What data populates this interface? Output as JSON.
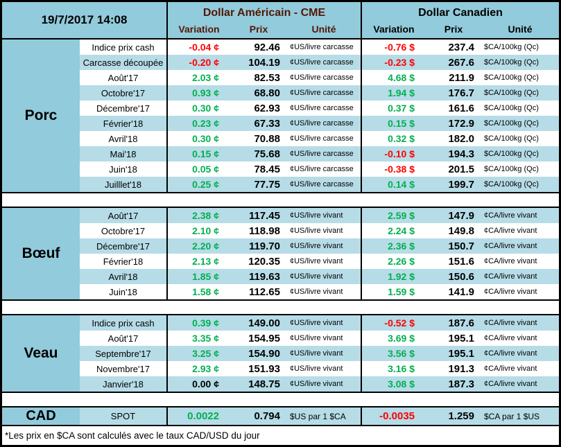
{
  "header": {
    "datetime": "19/7/2017 14:08",
    "us_title": "Dollar Américain - CME",
    "ca_title": "Dollar Canadien",
    "columns": {
      "variation": "Variation",
      "prix": "Prix",
      "unite": "Unité"
    }
  },
  "colors": {
    "accent_blue": "#92cbdb",
    "row_blue": "#b6dce7",
    "positive_green": "#00b050",
    "negative_red": "#ff0000",
    "us_header_text": "#521808"
  },
  "sections": [
    {
      "name": "Porc",
      "rows": [
        {
          "label": "Indice prix cash",
          "us_variation": "-0.04 ¢",
          "us_prix": "92.46",
          "us_unite": "¢US/livre carcasse",
          "ca_variation": "-0.76 $",
          "ca_prix": "237.4",
          "ca_unite": "$CA/100kg (Qc)"
        },
        {
          "label": "Carcasse découpée",
          "us_variation": "-0.20 ¢",
          "us_prix": "104.19",
          "us_unite": "¢US/livre carcasse",
          "ca_variation": "-0.23 $",
          "ca_prix": "267.6",
          "ca_unite": "$CA/100kg (Qc)"
        },
        {
          "label": "Août'17",
          "us_variation": "2.03 ¢",
          "us_prix": "82.53",
          "us_unite": "¢US/livre carcasse",
          "ca_variation": "4.68 $",
          "ca_prix": "211.9",
          "ca_unite": "$CA/100kg (Qc)"
        },
        {
          "label": "Octobre'17",
          "us_variation": "0.93 ¢",
          "us_prix": "68.80",
          "us_unite": "¢US/livre carcasse",
          "ca_variation": "1.94 $",
          "ca_prix": "176.7",
          "ca_unite": "$CA/100kg (Qc)"
        },
        {
          "label": "Décembre'17",
          "us_variation": "0.30 ¢",
          "us_prix": "62.93",
          "us_unite": "¢US/livre carcasse",
          "ca_variation": "0.37 $",
          "ca_prix": "161.6",
          "ca_unite": "$CA/100kg (Qc)"
        },
        {
          "label": "Février'18",
          "us_variation": "0.23 ¢",
          "us_prix": "67.33",
          "us_unite": "¢US/livre carcasse",
          "ca_variation": "0.15 $",
          "ca_prix": "172.9",
          "ca_unite": "$CA/100kg (Qc)"
        },
        {
          "label": "Avril'18",
          "us_variation": "0.30 ¢",
          "us_prix": "70.88",
          "us_unite": "¢US/livre carcasse",
          "ca_variation": "0.32 $",
          "ca_prix": "182.0",
          "ca_unite": "$CA/100kg (Qc)"
        },
        {
          "label": "Mai'18",
          "us_variation": "0.15 ¢",
          "us_prix": "75.68",
          "us_unite": "¢US/livre carcasse",
          "ca_variation": "-0.10 $",
          "ca_prix": "194.3",
          "ca_unite": "$CA/100kg (Qc)"
        },
        {
          "label": "Juin'18",
          "us_variation": "0.05 ¢",
          "us_prix": "78.45",
          "us_unite": "¢US/livre carcasse",
          "ca_variation": "-0.38 $",
          "ca_prix": "201.5",
          "ca_unite": "$CA/100kg (Qc)"
        },
        {
          "label": "Juilllet'18",
          "us_variation": "0.25 ¢",
          "us_prix": "77.75",
          "us_unite": "¢US/livre carcasse",
          "ca_variation": "0.14 $",
          "ca_prix": "199.7",
          "ca_unite": "$CA/100kg (Qc)"
        }
      ]
    },
    {
      "name": "Bœuf",
      "rows": [
        {
          "label": "Août'17",
          "us_variation": "2.38 ¢",
          "us_prix": "117.45",
          "us_unite": "¢US/livre vivant",
          "ca_variation": "2.59 $",
          "ca_prix": "147.9",
          "ca_unite": "¢CA/livre vivant"
        },
        {
          "label": "Octobre'17",
          "us_variation": "2.10 ¢",
          "us_prix": "118.98",
          "us_unite": "¢US/livre vivant",
          "ca_variation": "2.24 $",
          "ca_prix": "149.8",
          "ca_unite": "¢CA/livre vivant"
        },
        {
          "label": "Décembre'17",
          "us_variation": "2.20 ¢",
          "us_prix": "119.70",
          "us_unite": "¢US/livre vivant",
          "ca_variation": "2.36 $",
          "ca_prix": "150.7",
          "ca_unite": "¢CA/livre vivant"
        },
        {
          "label": "Février'18",
          "us_variation": "2.13 ¢",
          "us_prix": "120.35",
          "us_unite": "¢US/livre vivant",
          "ca_variation": "2.26 $",
          "ca_prix": "151.6",
          "ca_unite": "¢CA/livre vivant"
        },
        {
          "label": "Avril'18",
          "us_variation": "1.85 ¢",
          "us_prix": "119.63",
          "us_unite": "¢US/livre vivant",
          "ca_variation": "1.92 $",
          "ca_prix": "150.6",
          "ca_unite": "¢CA/livre vivant"
        },
        {
          "label": "Juin'18",
          "us_variation": "1.58 ¢",
          "us_prix": "112.65",
          "us_unite": "¢US/livre vivant",
          "ca_variation": "1.59 $",
          "ca_prix": "141.9",
          "ca_unite": "¢CA/livre vivant"
        }
      ]
    },
    {
      "name": "Veau",
      "rows": [
        {
          "label": "Indice prix cash",
          "us_variation": "0.39 ¢",
          "us_prix": "149.00",
          "us_unite": "¢US/livre vivant",
          "ca_variation": "-0.52 $",
          "ca_prix": "187.6",
          "ca_unite": "¢CA/livre vivant"
        },
        {
          "label": "Août'17",
          "us_variation": "3.35 ¢",
          "us_prix": "154.95",
          "us_unite": "¢US/livre vivant",
          "ca_variation": "3.69 $",
          "ca_prix": "195.1",
          "ca_unite": "¢CA/livre vivant"
        },
        {
          "label": "Septembre'17",
          "us_variation": "3.25 ¢",
          "us_prix": "154.90",
          "us_unite": "¢US/livre vivant",
          "ca_variation": "3.56 $",
          "ca_prix": "195.1",
          "ca_unite": "¢CA/livre vivant"
        },
        {
          "label": "Novembre'17",
          "us_variation": "2.93 ¢",
          "us_prix": "151.93",
          "us_unite": "¢US/livre vivant",
          "ca_variation": "3.16 $",
          "ca_prix": "191.3",
          "ca_unite": "¢CA/livre vivant"
        },
        {
          "label": "Janvier'18",
          "us_variation": "0.00 ¢",
          "us_prix": "148.75",
          "us_unite": "¢US/livre vivant",
          "ca_variation": "3.08 $",
          "ca_prix": "187.3",
          "ca_unite": "¢CA/livre vivant"
        }
      ]
    }
  ],
  "cad": {
    "name": "CAD",
    "label": "SPOT",
    "us_variation": "0.0022",
    "us_prix": "0.794",
    "us_unite": "$US par 1 $CA",
    "ca_variation": "-0.0035",
    "ca_prix": "1.259",
    "ca_unite": "$CA par 1 $US"
  },
  "footnote": "*Les  prix en $CA sont calculés avec le taux CAD/USD du jour"
}
